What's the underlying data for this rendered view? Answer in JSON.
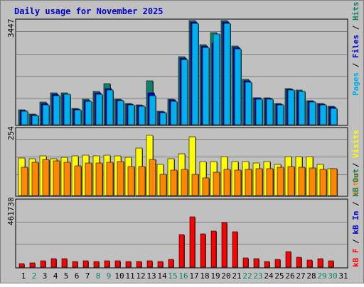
{
  "title": "Daily usage for November 2025",
  "colors": {
    "background": "#c0c0c0",
    "panel": "#c0c0c0",
    "grid": "#808080",
    "title": "#0000cc",
    "hits": "#10806a",
    "files": "#0000cc",
    "pages": "#00b0ee",
    "visits": "#ffff00",
    "sites": "#ff8800",
    "kbin": "#0000cc",
    "kbout": "#10806a",
    "kbf": "#ff0000",
    "weekday_label": "#10806a",
    "day_label": "#000000"
  },
  "panels": {
    "top": {
      "max_label": "3447",
      "right_labels": [
        "Pages",
        "Files",
        "Hits"
      ]
    },
    "mid": {
      "max_label": "254",
      "right_labels": [
        "Sites",
        "Visits"
      ]
    },
    "bot": {
      "max_label": "461730",
      "right_labels": [
        "kB F",
        "kB In",
        "kB Out"
      ]
    }
  },
  "chart_data": {
    "type": "bar",
    "title": "Daily usage for November 2025",
    "categories": [
      "1",
      "2",
      "3",
      "4",
      "5",
      "6",
      "7",
      "8",
      "9",
      "10",
      "11",
      "12",
      "13",
      "14",
      "15",
      "16",
      "17",
      "18",
      "19",
      "20",
      "21",
      "22",
      "23",
      "24",
      "25",
      "26",
      "27",
      "28",
      "29",
      "30",
      "31"
    ],
    "weekend_days": [
      "2",
      "8",
      "9",
      "15",
      "16",
      "22",
      "23",
      "29",
      "30"
    ],
    "panels": [
      {
        "name": "hits-files-pages",
        "max_label": 3447,
        "ylim": [
          0,
          3447
        ],
        "series": [
          {
            "name": "Hits",
            "values": [
              500,
              350,
              750,
              1050,
              1050,
              550,
              850,
              1100,
              1350,
              850,
              700,
              650,
              1450,
              450,
              850,
              2250,
              3450,
              2650,
              3050,
              3450,
              2600,
              1500,
              900,
              900,
              700,
              1200,
              1150,
              800,
              700,
              600,
              0
            ]
          },
          {
            "name": "Files",
            "values": [
              480,
              330,
              700,
              1000,
              1000,
              520,
              800,
              1050,
              1200,
              820,
              680,
              630,
              1050,
              430,
              820,
              2200,
              3400,
              2600,
              2700,
              3400,
              2550,
              1450,
              880,
              870,
              680,
              1180,
              1100,
              780,
              690,
              580,
              0
            ]
          },
          {
            "name": "Pages",
            "values": [
              450,
              300,
              650,
              950,
              1000,
              500,
              780,
              1000,
              1150,
              800,
              650,
              620,
              950,
              400,
              780,
              2150,
              3350,
              2550,
              3000,
              3350,
              2500,
              1400,
              850,
              850,
              650,
              1150,
              1100,
              750,
              650,
              550,
              0
            ]
          }
        ]
      },
      {
        "name": "visits-sites",
        "max_label": 254,
        "ylim": [
          0,
          254
        ],
        "series": [
          {
            "name": "Visits",
            "values": [
              143,
              140,
              150,
              140,
              145,
              150,
              155,
              150,
              155,
              150,
              145,
              180,
              230,
              120,
              140,
              160,
              225,
              130,
              130,
              148,
              130,
              130,
              125,
              130,
              120,
              148,
              148,
              148,
              120,
              103,
              0
            ]
          },
          {
            "name": "Sites",
            "values": [
              108,
              128,
              138,
              133,
              128,
              113,
              123,
              123,
              128,
              130,
              112,
              110,
              138,
              80,
              98,
              100,
              80,
              68,
              88,
              100,
              98,
              100,
              103,
              103,
              108,
              110,
              108,
              106,
              100,
              103,
              0
            ]
          }
        ]
      },
      {
        "name": "kbf-kbin-kbout",
        "max_label": 461730,
        "ylim": [
          0,
          461730
        ],
        "series": [
          {
            "name": "kB F",
            "values": [
              25000,
              30000,
              45000,
              60000,
              60000,
              40000,
              45000,
              40000,
              45000,
              45000,
              40000,
              40000,
              45000,
              40000,
              55000,
              225000,
              350000,
              230000,
              250000,
              310000,
              245000,
              65000,
              60000,
              40000,
              55000,
              110000,
              70000,
              50000,
              60000,
              45000,
              0
            ]
          }
        ]
      }
    ]
  }
}
